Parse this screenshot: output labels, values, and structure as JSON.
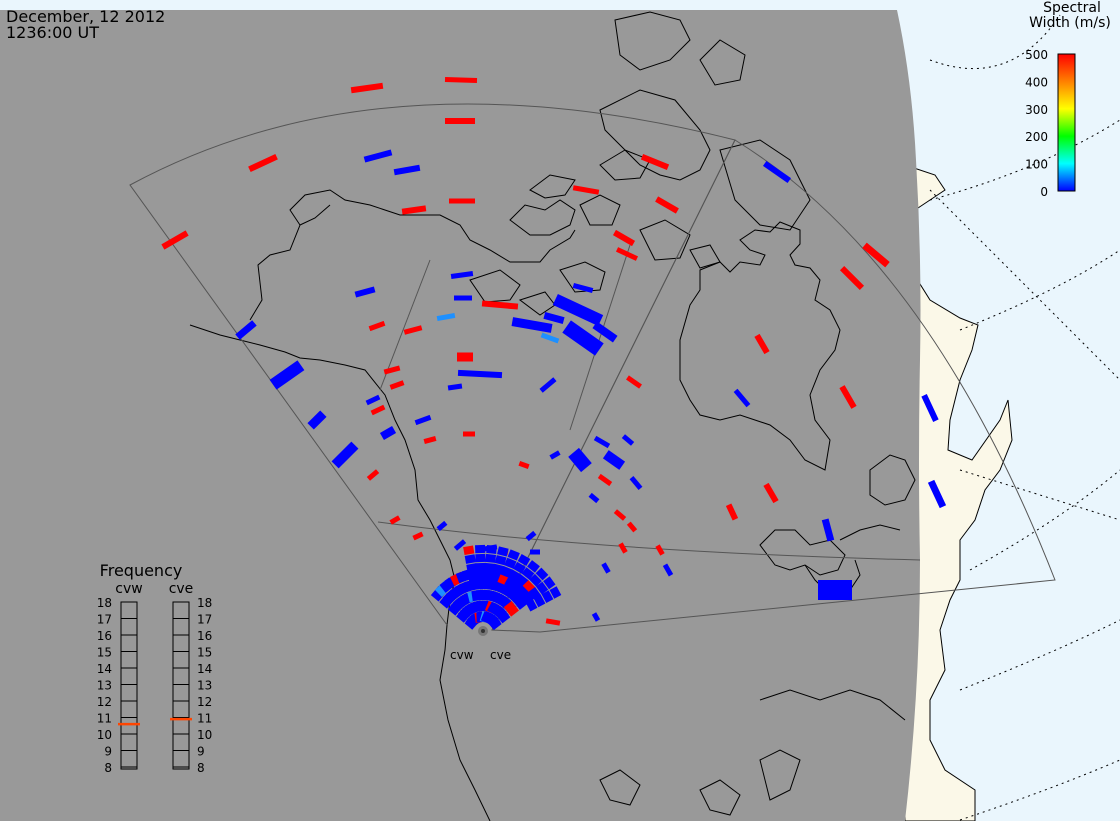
{
  "header": {
    "date": "December, 12 2012",
    "time": "1236:00 UT"
  },
  "colorbar": {
    "title_line1": "Spectral",
    "title_line2": "Width (m/s)",
    "ticks": [
      "500",
      "400",
      "300",
      "200",
      "100",
      "0"
    ],
    "colors": [
      "#ff0000",
      "#ff8000",
      "#ffff00",
      "#00ff00",
      "#00ffff",
      "#0000ff"
    ]
  },
  "frequency_panel": {
    "title": "Frequency",
    "radars": [
      {
        "code": "cvw",
        "selected_mhz": 10.6
      },
      {
        "code": "cve",
        "selected_mhz": 10.9
      }
    ],
    "scale": [
      "18",
      "17",
      "16",
      "15",
      "14",
      "13",
      "12",
      "11",
      "10",
      "9",
      "8"
    ],
    "marker_color": "#ff4500"
  },
  "map": {
    "projection": "polar stereographic (magnetic)",
    "ocean_color": "#eaf6fd",
    "land_day_color": "#fbf8e8",
    "night_color": "#999999",
    "coastline_color": "#000000",
    "fov_outline_color": "#555555",
    "radar_sites": [
      {
        "code": "cvw",
        "label": "cvw"
      },
      {
        "code": "cve",
        "label": "cve"
      }
    ]
  }
}
